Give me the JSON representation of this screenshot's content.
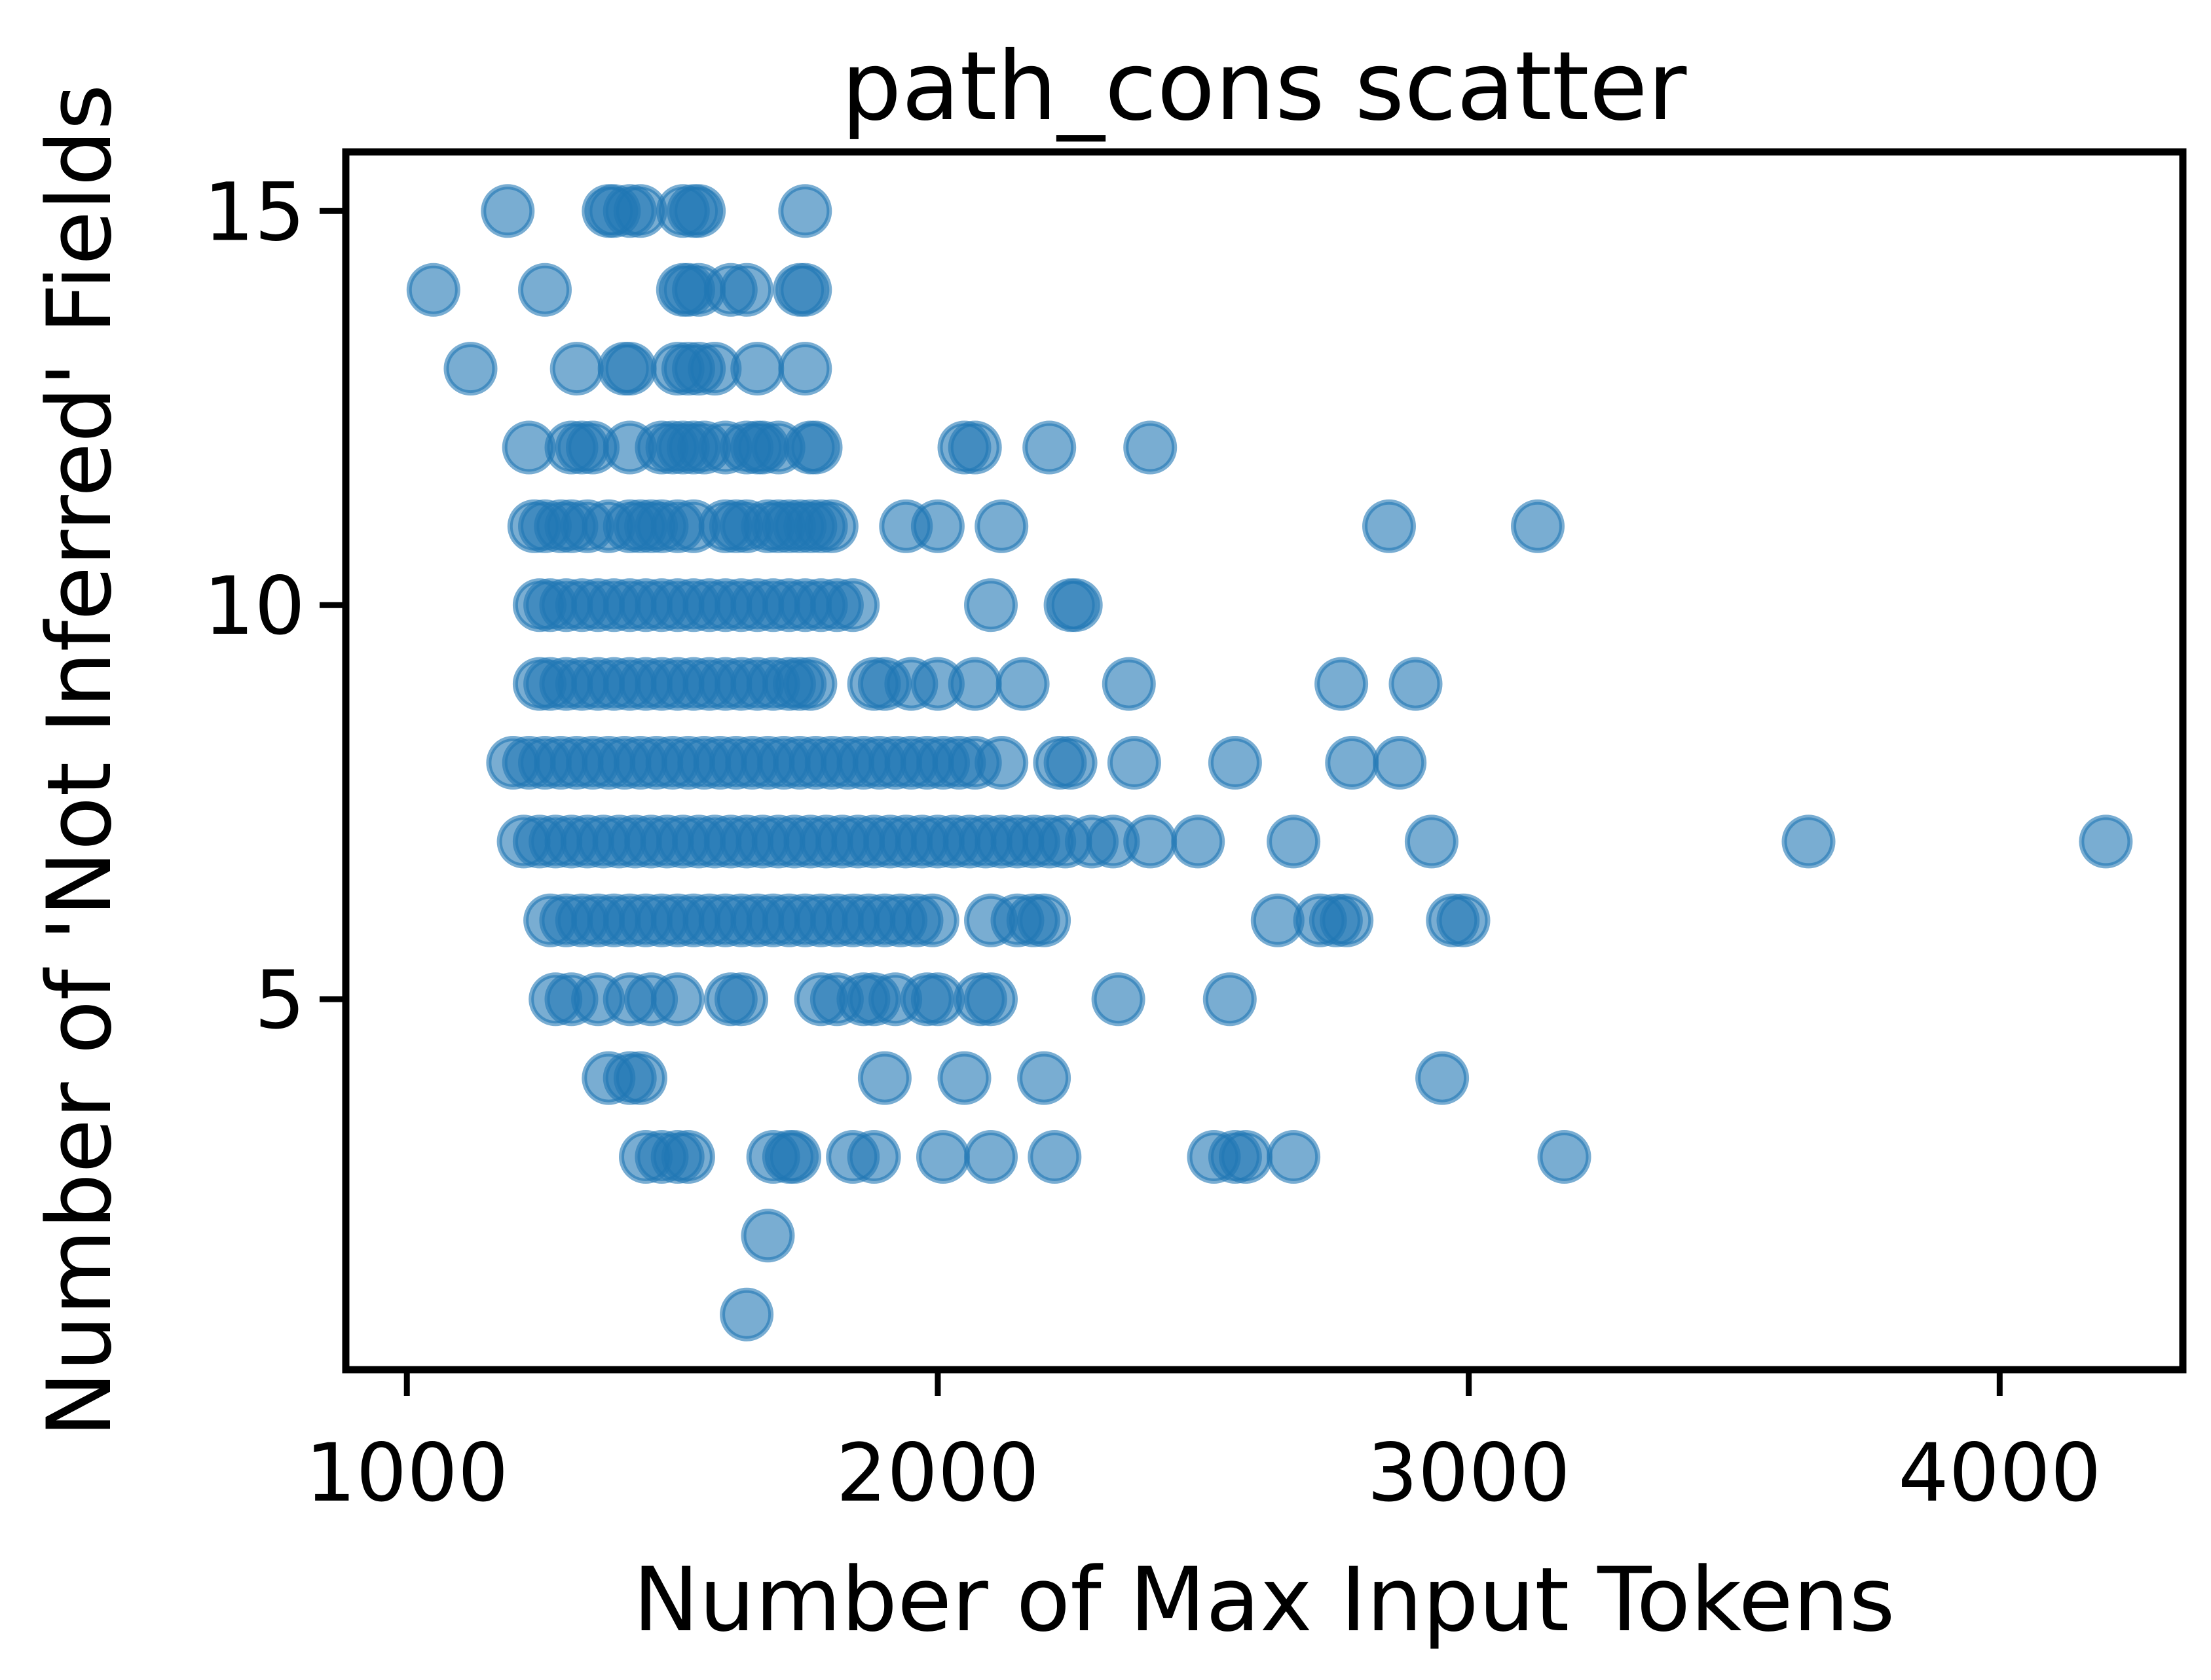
{
  "chart_data": {
    "type": "scatter",
    "title": "path_cons scatter",
    "xlabel": "Number of Max Input Tokens",
    "ylabel": "Number of 'Not Inferred' Fields",
    "xlim": [
      885,
      4345
    ],
    "ylim": [
      0.3,
      15.75
    ],
    "xticks": [
      1000,
      2000,
      3000,
      4000
    ],
    "yticks": [
      5,
      10,
      15
    ],
    "grid": false,
    "marker_color": "#1f77b4",
    "marker_alpha": 0.6,
    "series": [
      {
        "x": [
          1190,
          1380,
          1390,
          1420,
          1440,
          1520,
          1540,
          1550,
          1750,
          1050,
          1260,
          1520,
          1530,
          1550,
          1610,
          1640,
          1740,
          1750,
          1120,
          1320,
          1410,
          1420,
          1510,
          1530,
          1550,
          1580,
          1660,
          1750,
          1230,
          1310,
          1330,
          1350,
          1420,
          1480,
          1500,
          1520,
          1540,
          1560,
          1600,
          1640,
          1660,
          1670,
          1700,
          1760,
          1770,
          2050,
          2070,
          2210,
          2400,
          1240,
          1260,
          1290,
          1310,
          1340,
          1380,
          1420,
          1440,
          1460,
          1480,
          1510,
          1540,
          1600,
          1620,
          1640,
          1680,
          1700,
          1720,
          1740,
          1760,
          1780,
          1800,
          1940,
          2000,
          2120,
          2850,
          3130,
          1250,
          1270,
          1300,
          1330,
          1360,
          1390,
          1420,
          1450,
          1480,
          1510,
          1540,
          1570,
          1600,
          1630,
          1660,
          1690,
          1720,
          1750,
          1780,
          1810,
          1840,
          2100,
          2250,
          2260,
          1250,
          1270,
          1300,
          1330,
          1360,
          1390,
          1420,
          1450,
          1480,
          1510,
          1540,
          1570,
          1600,
          1630,
          1660,
          1690,
          1720,
          1740,
          1760,
          1880,
          1900,
          1950,
          2000,
          2070,
          2160,
          2360,
          2760,
          2900,
          1200,
          1230,
          1260,
          1290,
          1320,
          1350,
          1380,
          1410,
          1440,
          1470,
          1500,
          1530,
          1560,
          1590,
          1620,
          1650,
          1680,
          1710,
          1740,
          1770,
          1800,
          1830,
          1860,
          1890,
          1920,
          1950,
          1980,
          2010,
          2040,
          2070,
          2120,
          2230,
          2250,
          2370,
          2560,
          2780,
          2870,
          1220,
          1250,
          1280,
          1310,
          1340,
          1370,
          1400,
          1430,
          1460,
          1490,
          1520,
          1550,
          1580,
          1610,
          1640,
          1670,
          1700,
          1730,
          1760,
          1790,
          1820,
          1850,
          1880,
          1910,
          1940,
          1970,
          2000,
          2030,
          2060,
          2090,
          2120,
          2150,
          2180,
          2210,
          2240,
          2290,
          2330,
          2400,
          2490,
          2670,
          2930,
          3640,
          4200,
          1270,
          1300,
          1330,
          1360,
          1390,
          1420,
          1450,
          1480,
          1510,
          1540,
          1570,
          1600,
          1630,
          1660,
          1690,
          1720,
          1750,
          1780,
          1810,
          1840,
          1870,
          1900,
          1930,
          1960,
          1990,
          2100,
          2150,
          2180,
          2200,
          2640,
          2720,
          2750,
          2770,
          2970,
          2990,
          1280,
          1310,
          1360,
          1420,
          1460,
          1510,
          1610,
          1630,
          1780,
          1810,
          1860,
          1880,
          1920,
          1980,
          2000,
          2080,
          2100,
          2340,
          2550,
          1380,
          1420,
          1440,
          1900,
          2050,
          2200,
          2950,
          1450,
          1480,
          1510,
          1530,
          1690,
          1720,
          1730,
          1840,
          1880,
          2010,
          2100,
          2220,
          2520,
          2560,
          2580,
          2670,
          3180,
          1680,
          1640
        ],
        "y": [
          15,
          15,
          15,
          15,
          15,
          15,
          15,
          15,
          15,
          14,
          14,
          14,
          14,
          14,
          14,
          14,
          14,
          14,
          13,
          13,
          13,
          13,
          13,
          13,
          13,
          13,
          13,
          13,
          12,
          12,
          12,
          12,
          12,
          12,
          12,
          12,
          12,
          12,
          12,
          12,
          12,
          12,
          12,
          12,
          12,
          12,
          12,
          12,
          12,
          11,
          11,
          11,
          11,
          11,
          11,
          11,
          11,
          11,
          11,
          11,
          11,
          11,
          11,
          11,
          11,
          11,
          11,
          11,
          11,
          11,
          11,
          11,
          11,
          11,
          11,
          11,
          10,
          10,
          10,
          10,
          10,
          10,
          10,
          10,
          10,
          10,
          10,
          10,
          10,
          10,
          10,
          10,
          10,
          10,
          10,
          10,
          10,
          10,
          10,
          10,
          9,
          9,
          9,
          9,
          9,
          9,
          9,
          9,
          9,
          9,
          9,
          9,
          9,
          9,
          9,
          9,
          9,
          9,
          9,
          9,
          9,
          9,
          9,
          9,
          9,
          9,
          9,
          9,
          8,
          8,
          8,
          8,
          8,
          8,
          8,
          8,
          8,
          8,
          8,
          8,
          8,
          8,
          8,
          8,
          8,
          8,
          8,
          8,
          8,
          8,
          8,
          8,
          8,
          8,
          8,
          8,
          8,
          8,
          8,
          8,
          8,
          8,
          8,
          8,
          8,
          7,
          7,
          7,
          7,
          7,
          7,
          7,
          7,
          7,
          7,
          7,
          7,
          7,
          7,
          7,
          7,
          7,
          7,
          7,
          7,
          7,
          7,
          7,
          7,
          7,
          7,
          7,
          7,
          7,
          7,
          7,
          7,
          7,
          7,
          7,
          7,
          7,
          7,
          7,
          7,
          7,
          7,
          7,
          6,
          6,
          6,
          6,
          6,
          6,
          6,
          6,
          6,
          6,
          6,
          6,
          6,
          6,
          6,
          6,
          6,
          6,
          6,
          6,
          6,
          6,
          6,
          6,
          6,
          6,
          6,
          6,
          6,
          6,
          6,
          6,
          6,
          6,
          6,
          5,
          5,
          5,
          5,
          5,
          5,
          5,
          5,
          5,
          5,
          5,
          5,
          5,
          5,
          5,
          5,
          5,
          5,
          5,
          4,
          4,
          4,
          4,
          4,
          4,
          4,
          3,
          3,
          3,
          3,
          3,
          3,
          3,
          3,
          3,
          3,
          3,
          3,
          3,
          3,
          3,
          3,
          3,
          2,
          1
        ]
      }
    ]
  }
}
